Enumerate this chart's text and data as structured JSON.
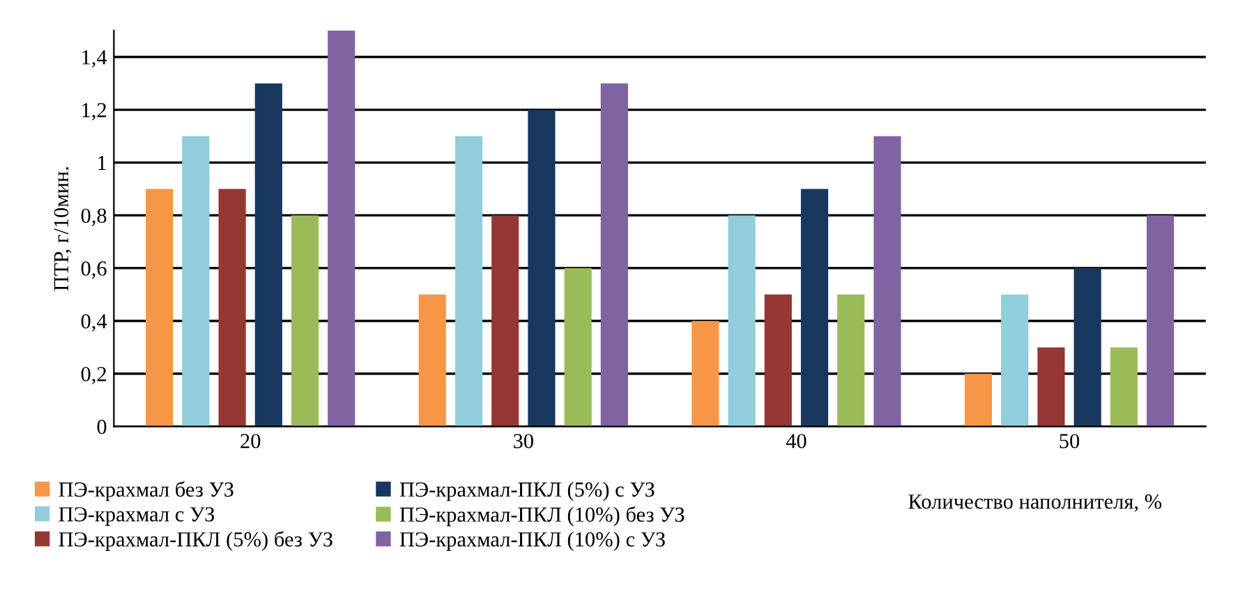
{
  "chart_data": {
    "type": "bar",
    "xlabel": "Количество наполнителя, %",
    "ylabel": "ПТР, г/10мин.",
    "categories": [
      "20",
      "30",
      "40",
      "50"
    ],
    "series": [
      {
        "name": "ПЭ-крахмал без УЗ",
        "color": "#f79646",
        "values": [
          0.9,
          0.5,
          0.4,
          0.2
        ]
      },
      {
        "name": "ПЭ-крахмал с УЗ",
        "color": "#92cddc",
        "values": [
          1.1,
          1.1,
          0.8,
          0.5
        ]
      },
      {
        "name": "ПЭ-крахмал-ПКЛ (5%) без УЗ",
        "color": "#953735",
        "values": [
          0.9,
          0.8,
          0.5,
          0.3
        ]
      },
      {
        "name": "ПЭ-крахмал-ПКЛ (5%) с УЗ",
        "color": "#17375e",
        "values": [
          1.3,
          1.2,
          0.9,
          0.6
        ]
      },
      {
        "name": "ПЭ-крахмал-ПКЛ (10%) без УЗ",
        "color": "#9bbb59",
        "values": [
          0.8,
          0.6,
          0.5,
          0.3
        ]
      },
      {
        "name": "ПЭ-крахмал-ПКЛ (10%) с УЗ",
        "color": "#8064a2",
        "values": [
          1.5,
          1.3,
          1.1,
          0.8
        ]
      }
    ],
    "ylim": [
      0,
      1.5
    ],
    "yticks": [
      0,
      {
        "value": 0.2,
        "label": "0,2"
      },
      {
        "value": 0.4,
        "label": "0,4"
      },
      {
        "value": 0.6,
        "label": "0,6"
      },
      {
        "value": 0.8,
        "label": "0,8"
      },
      1,
      {
        "value": 1.2,
        "label": "1,2"
      },
      {
        "value": 1.4,
        "label": "1,4"
      }
    ],
    "grid": "y",
    "legend": "bottom"
  }
}
